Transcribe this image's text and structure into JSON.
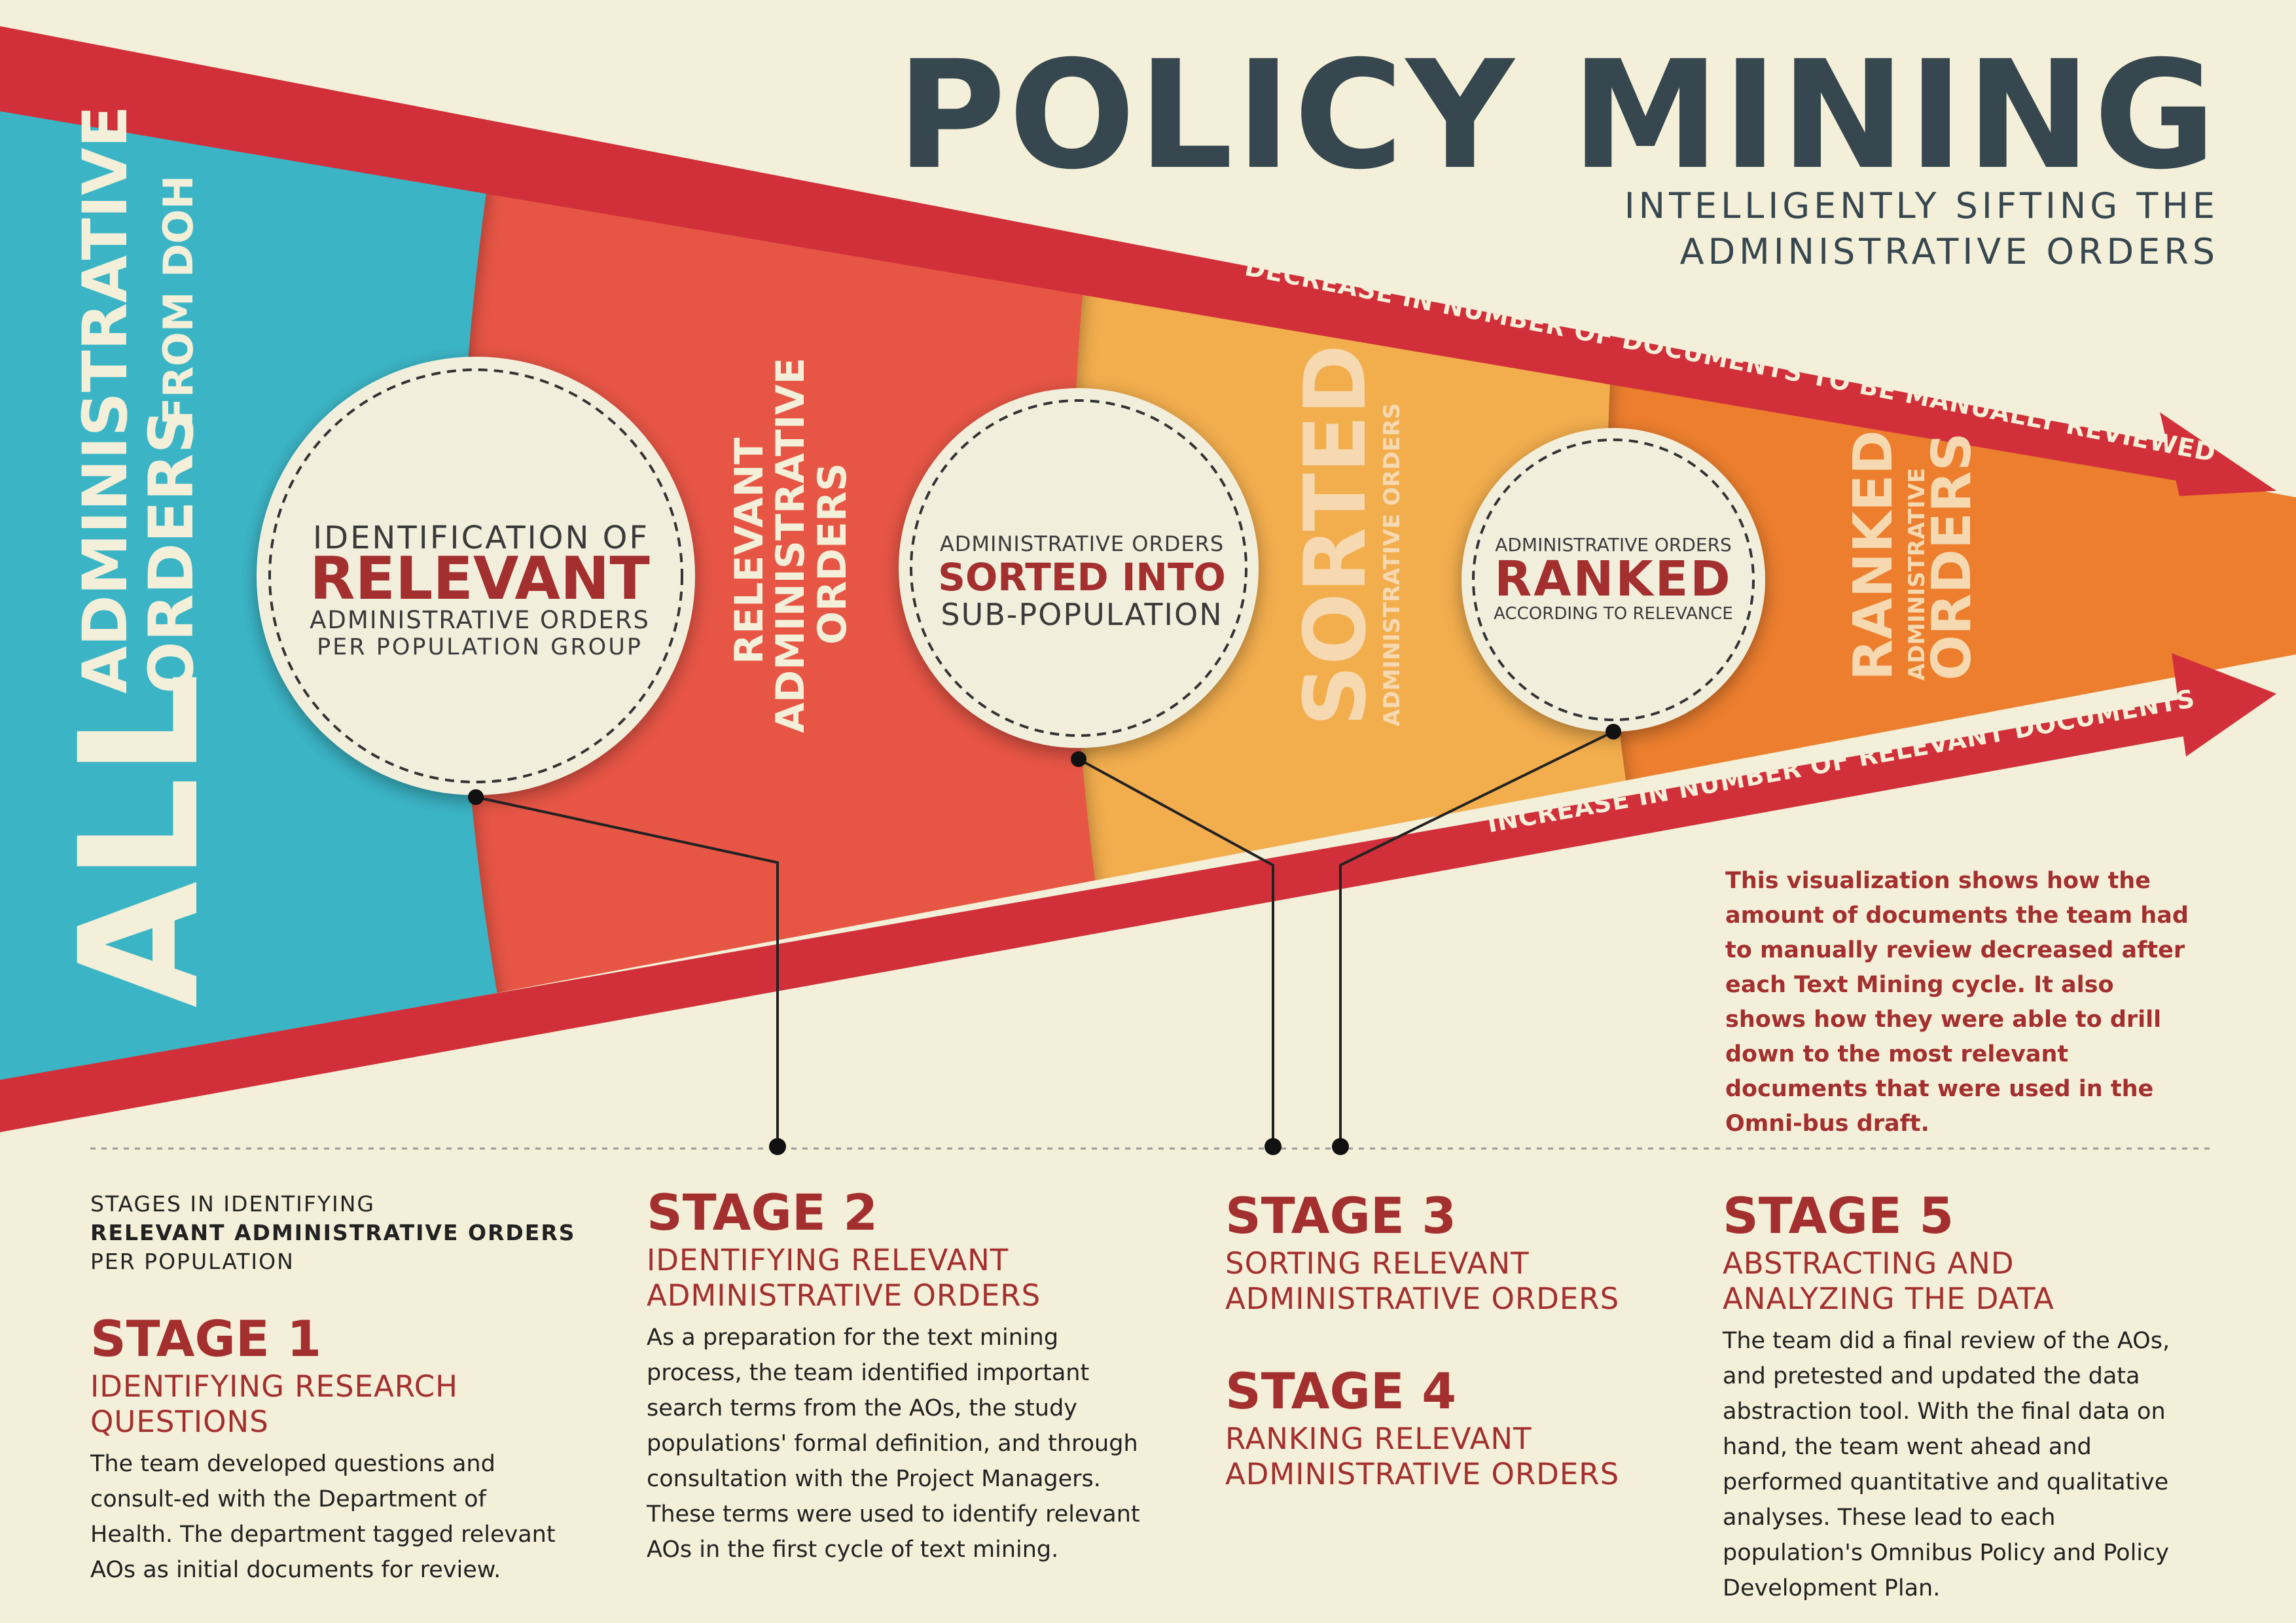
{
  "header": {
    "title": "POLICY MINING",
    "subtitle_line1": "INTELLIGENTLY SIFTING THE",
    "subtitle_line2": "ADMINISTRATIVE ORDERS"
  },
  "funnel": {
    "segment1": {
      "big": "ALL",
      "line1": "ADMINISTRATIVE",
      "line2a": "ORDERS",
      "line2b": "FROM DOH"
    },
    "segment2": {
      "line1": "RELEVANT",
      "line2": "ADMINISTRATIVE",
      "line3": "ORDERS"
    },
    "segment3": {
      "big": "SORTED",
      "small": "ADMINISTRATIVE ORDERS"
    },
    "segment4": {
      "line1": "RANKED",
      "line2": "ADMINISTRATIVE",
      "line3": "ORDERS"
    },
    "arrow_top": "DECREASE IN NUMBER OF DOCUMENTS TO BE MANUALLY REVIEWED",
    "arrow_bottom": "INCREASE IN NUMBER OF RELEVANT DOCUMENTS"
  },
  "circles": {
    "c1": {
      "line1": "IDENTIFICATION OF",
      "line2": "RELEVANT",
      "line3": "ADMINISTRATIVE ORDERS",
      "line4": "PER POPULATION GROUP"
    },
    "c2": {
      "line1": "ADMINISTRATIVE ORDERS",
      "line2": "SORTED INTO",
      "line3": "SUB-POPULATION"
    },
    "c3": {
      "line1": "ADMINISTRATIVE ORDERS",
      "line2": "RANKED",
      "line3": "ACCORDING TO RELEVANCE"
    }
  },
  "note": "This visualization shows how the amount of documents the team had to manually review decreased after each Text Mining cycle. It also shows how they were able to drill down to the most relevant documents that were used in the Omni-bus draft.",
  "stages_intro": {
    "line1": "STAGES IN IDENTIFYING",
    "line2": "RELEVANT ADMINISTRATIVE ORDERS",
    "line3": "PER POPULATION"
  },
  "stages": [
    {
      "heading": "STAGE 1",
      "sub1": "IDENTIFYING RESEARCH",
      "sub2": "QUESTIONS",
      "body": "The team developed questions and consult-ed with the Department of Health. The department tagged relevant AOs as initial documents for review."
    },
    {
      "heading": "STAGE 2",
      "sub1": "IDENTIFYING RELEVANT",
      "sub2": "ADMINISTRATIVE ORDERS",
      "body": "As a preparation for the text mining process, the team identified important search terms from the AOs, the study populations' formal definition, and through consultation with the Project Managers. These terms were used to identify relevant AOs in the first cycle of text mining."
    },
    {
      "heading": "STAGE 3",
      "sub1": "SORTING RELEVANT",
      "sub2": "ADMINISTRATIVE ORDERS",
      "body": ""
    },
    {
      "heading": "STAGE 4",
      "sub1": "RANKING RELEVANT",
      "sub2": "ADMINISTRATIVE ORDERS",
      "body": ""
    },
    {
      "heading": "STAGE 5",
      "sub1": "ABSTRACTING AND",
      "sub2": "ANALYZING THE DATA",
      "body": "The team did a final review of the AOs, and pretested and updated the data abstraction tool. With the final data on hand, the team went ahead and performed quantitative and qualitative analyses. These lead to each population's Omnibus Policy and Policy Development Plan."
    }
  ],
  "colors": {
    "background": "#f3efd8",
    "teal": "#3bb5c6",
    "coral": "#e75444",
    "light_orange": "#f2ad4e",
    "orange": "#ec7e2e",
    "red_band": "#d1303a",
    "circle_fill": "#f2eedc",
    "dark_red_text": "#a32f2f",
    "title_gray": "#37474f"
  }
}
